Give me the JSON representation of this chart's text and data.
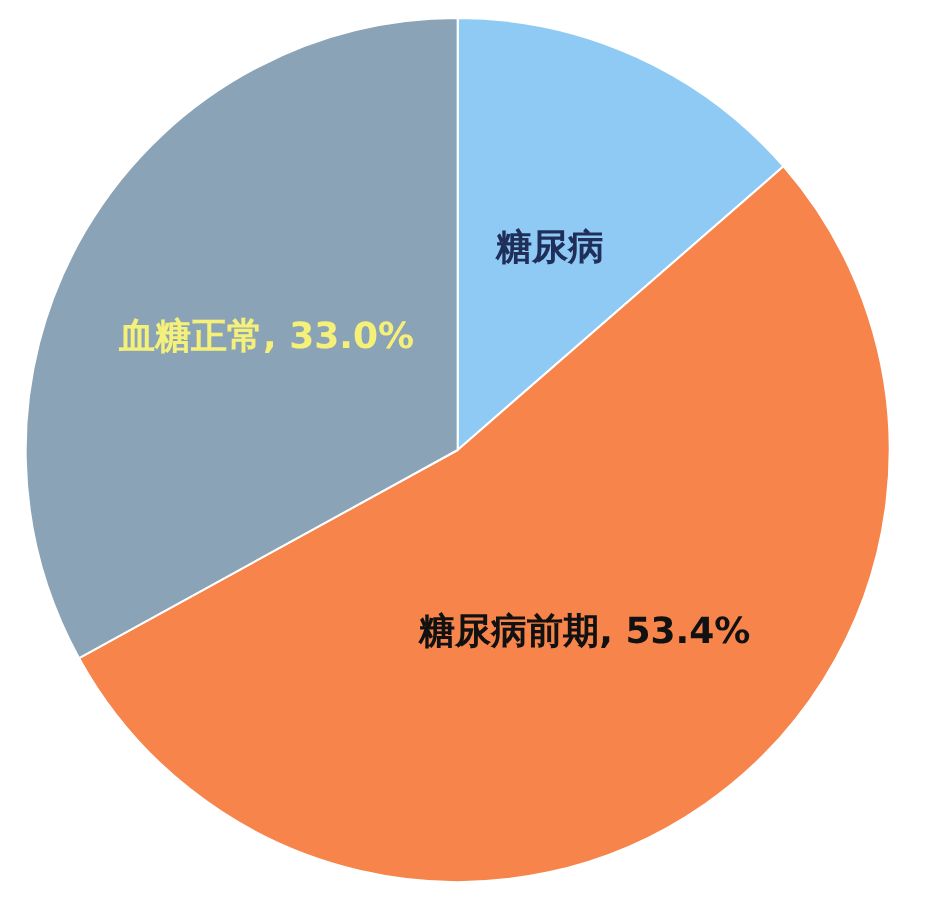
{
  "chart_data": {
    "type": "pie",
    "categories": [
      "糖尿病",
      "糖尿病前期",
      "血糖正常"
    ],
    "values": [
      13.6,
      53.4,
      33.0
    ],
    "value_labels": [
      null,
      "53.4%",
      "33.0%"
    ],
    "colors": [
      "#8fcaf5",
      "#f6844b",
      "#8ba3b6"
    ],
    "legend": false
  }
}
